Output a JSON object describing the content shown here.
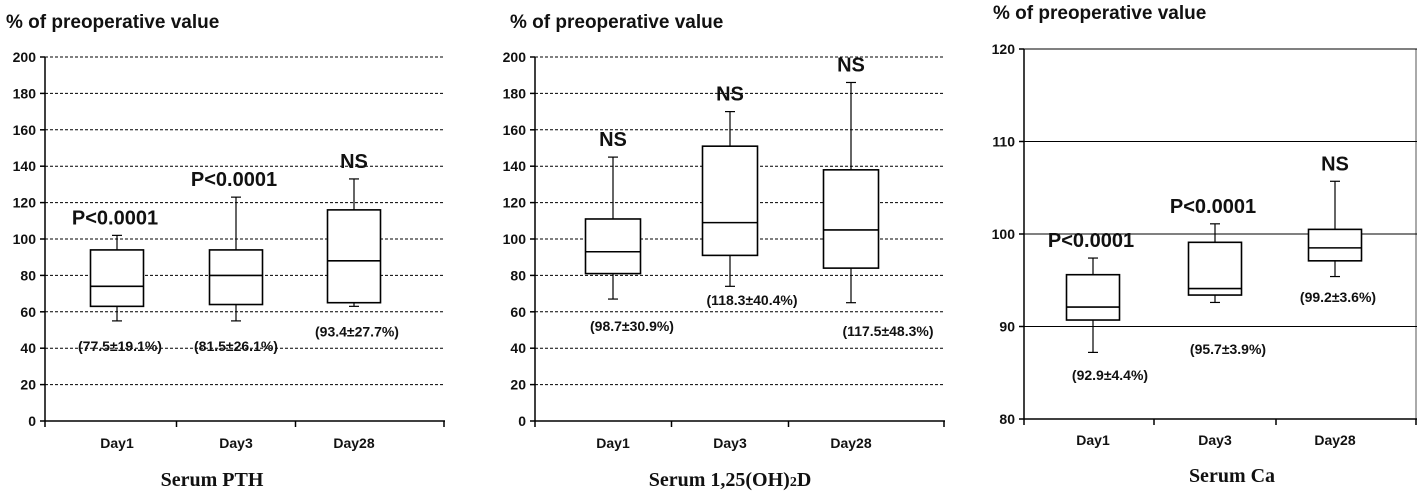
{
  "chart_data": [
    {
      "type": "boxplot",
      "title": "Serum PTH",
      "ylabel": "% of preoperative value",
      "ylim": [
        0,
        200
      ],
      "yticks": [
        0,
        20,
        40,
        60,
        80,
        100,
        120,
        140,
        160,
        180,
        200
      ],
      "grid": "dashed",
      "categories": [
        "Day1",
        "Day3",
        "Day28"
      ],
      "boxes": [
        {
          "min": 55,
          "q1": 63,
          "median": 74,
          "q3": 94,
          "max": 102
        },
        {
          "min": 55,
          "q1": 64,
          "median": 80,
          "q3": 94,
          "max": 123
        },
        {
          "min": 63,
          "q1": 65,
          "median": 88,
          "q3": 116,
          "max": 133
        }
      ],
      "annotations": [
        "P<0.0001",
        "P<0.0001",
        "NS"
      ],
      "mean_sd_labels": [
        "(77.5±19.1%)",
        "(81.5±26.1%)",
        "(93.4±27.7%)"
      ]
    },
    {
      "type": "boxplot",
      "title_main": "Serum 1,25(OH)",
      "title_sub": "2",
      "title_end": "D",
      "ylabel": "% of preoperative value",
      "ylim": [
        0,
        200
      ],
      "yticks": [
        0,
        20,
        40,
        60,
        80,
        100,
        120,
        140,
        160,
        180,
        200
      ],
      "grid": "dashed",
      "categories": [
        "Day1",
        "Day3",
        "Day28"
      ],
      "boxes": [
        {
          "min": 67,
          "q1": 81,
          "median": 93,
          "q3": 111,
          "max": 145
        },
        {
          "min": 74,
          "q1": 91,
          "median": 109,
          "q3": 151,
          "max": 170
        },
        {
          "min": 65,
          "q1": 84,
          "median": 105,
          "q3": 138,
          "max": 186
        }
      ],
      "annotations": [
        "NS",
        "NS",
        "NS"
      ],
      "mean_sd_labels": [
        "(98.7±30.9%)",
        "(118.3±40.4%)",
        "(117.5±48.3%)"
      ]
    },
    {
      "type": "boxplot",
      "title": "Serum Ca",
      "ylabel": "% of preoperative value",
      "ylim": [
        80,
        120
      ],
      "yticks": [
        80,
        90,
        100,
        110,
        120
      ],
      "grid": "solid",
      "categories": [
        "Day1",
        "Day3",
        "Day28"
      ],
      "boxes": [
        {
          "min": 87.2,
          "q1": 90.7,
          "median": 92.1,
          "q3": 95.6,
          "max": 97.4
        },
        {
          "min": 92.6,
          "q1": 93.4,
          "median": 94.1,
          "q3": 99.1,
          "max": 101.1
        },
        {
          "min": 95.4,
          "q1": 97.1,
          "median": 98.5,
          "q3": 100.5,
          "max": 105.7
        }
      ],
      "annotations": [
        "P<0.0001",
        "P<0.0001",
        "NS"
      ],
      "mean_sd_labels": [
        "(92.9±4.4%)",
        "(95.7±3.9%)",
        "(99.2±3.6%)"
      ]
    }
  ]
}
